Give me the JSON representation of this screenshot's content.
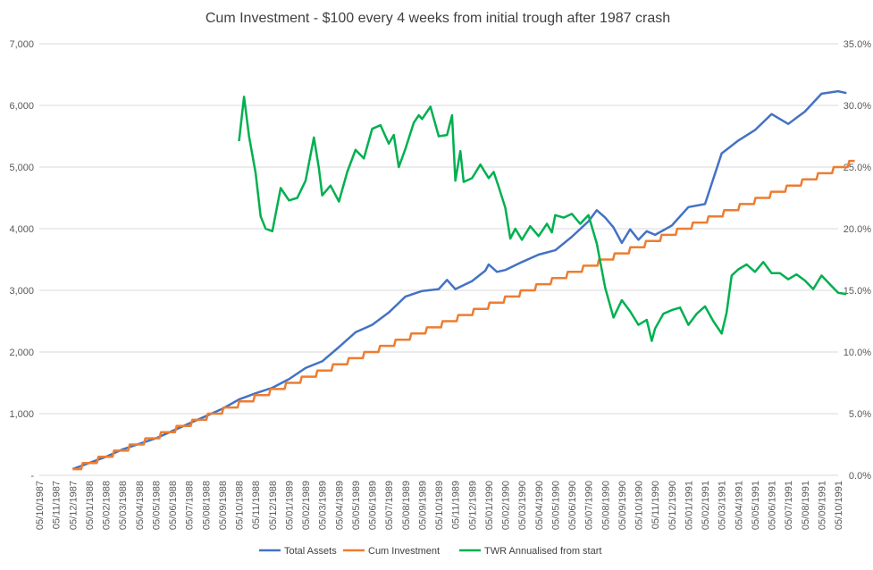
{
  "chart_data": {
    "type": "line",
    "title": "Cum Investment - $100 every 4 weeks from initial trough after 1987 crash",
    "x_tick_labels": [
      "05/10/1987",
      "05/11/1987",
      "05/12/1987",
      "05/01/1988",
      "05/02/1988",
      "05/03/1988",
      "05/04/1988",
      "05/05/1988",
      "05/06/1988",
      "05/07/1988",
      "05/08/1988",
      "05/09/1988",
      "05/10/1988",
      "05/11/1988",
      "05/12/1988",
      "05/01/1989",
      "05/02/1989",
      "05/03/1989",
      "05/04/1989",
      "05/05/1989",
      "05/06/1989",
      "05/07/1989",
      "05/08/1989",
      "05/09/1989",
      "05/10/1989",
      "05/11/1989",
      "05/12/1989",
      "05/01/1990",
      "05/02/1990",
      "05/03/1990",
      "05/04/1990",
      "05/05/1990",
      "05/06/1990",
      "05/07/1990",
      "05/08/1990",
      "05/09/1990",
      "05/10/1990",
      "05/11/1990",
      "05/12/1990",
      "05/01/1991",
      "05/02/1991",
      "05/03/1991",
      "05/04/1991",
      "05/05/1991",
      "05/06/1991",
      "05/07/1991",
      "05/08/1991",
      "05/09/1991",
      "05/10/1991"
    ],
    "y_left": {
      "ylim": [
        0,
        7000
      ],
      "tick_labels": [
        "-",
        "1,000",
        "2,000",
        "3,000",
        "4,000",
        "5,000",
        "6,000",
        "7,000"
      ]
    },
    "y_right": {
      "ylim": [
        0,
        35
      ],
      "tick_labels": [
        "0.0%",
        "5.0%",
        "10.0%",
        "15.0%",
        "20.0%",
        "25.0%",
        "30.0%",
        "35.0%"
      ]
    },
    "gridlines": true,
    "legend_position": "bottom",
    "series": [
      {
        "name": "Total Assets",
        "color": "#4472C4",
        "axis": "left",
        "points": [
          [
            2,
            100
          ],
          [
            3,
            200
          ],
          [
            4,
            300
          ],
          [
            5,
            420
          ],
          [
            6,
            510
          ],
          [
            7,
            600
          ],
          [
            8,
            720
          ],
          [
            9,
            840
          ],
          [
            10,
            960
          ],
          [
            11,
            1080
          ],
          [
            12,
            1230
          ],
          [
            13,
            1330
          ],
          [
            14,
            1420
          ],
          [
            15,
            1560
          ],
          [
            16,
            1740
          ],
          [
            17,
            1850
          ],
          [
            18,
            2080
          ],
          [
            19,
            2320
          ],
          [
            20,
            2440
          ],
          [
            21,
            2640
          ],
          [
            22,
            2900
          ],
          [
            23,
            2990
          ],
          [
            24,
            3020
          ],
          [
            24.5,
            3170
          ],
          [
            25,
            3020
          ],
          [
            26,
            3150
          ],
          [
            26.8,
            3320
          ],
          [
            27,
            3420
          ],
          [
            27.5,
            3300
          ],
          [
            28,
            3330
          ],
          [
            29,
            3460
          ],
          [
            30,
            3580
          ],
          [
            31,
            3650
          ],
          [
            32,
            3870
          ],
          [
            33,
            4120
          ],
          [
            33.5,
            4300
          ],
          [
            34,
            4180
          ],
          [
            34.5,
            4020
          ],
          [
            35,
            3770
          ],
          [
            35.5,
            3990
          ],
          [
            36,
            3820
          ],
          [
            36.5,
            3960
          ],
          [
            37,
            3900
          ],
          [
            38,
            4050
          ],
          [
            39,
            4350
          ],
          [
            40,
            4400
          ],
          [
            41,
            5220
          ],
          [
            42,
            5430
          ],
          [
            43,
            5600
          ],
          [
            44,
            5860
          ],
          [
            45,
            5700
          ],
          [
            46,
            5900
          ],
          [
            47,
            6190
          ],
          [
            48,
            6230
          ],
          [
            48.5,
            6200
          ]
        ]
      },
      {
        "name": "Cum Investment",
        "color": "#ED7D31",
        "axis": "left",
        "points": [
          [
            2,
            100
          ],
          [
            49,
            5100
          ]
        ]
      },
      {
        "name": "TWR Annualised from start",
        "color": "#00B050",
        "axis": "right",
        "points": [
          [
            12,
            27.1
          ],
          [
            12.3,
            30.7
          ],
          [
            12.6,
            27.5
          ],
          [
            13,
            24.5
          ],
          [
            13.3,
            21
          ],
          [
            13.6,
            20
          ],
          [
            14,
            19.8
          ],
          [
            14.5,
            23.3
          ],
          [
            15,
            22.3
          ],
          [
            15.5,
            22.5
          ],
          [
            16,
            23.9
          ],
          [
            16.5,
            27.4
          ],
          [
            16.8,
            24.9
          ],
          [
            17,
            22.7
          ],
          [
            17.5,
            23.5
          ],
          [
            18,
            22.2
          ],
          [
            18.5,
            24.6
          ],
          [
            19,
            26.4
          ],
          [
            19.5,
            25.7
          ],
          [
            20,
            28.1
          ],
          [
            20.5,
            28.4
          ],
          [
            21,
            26.9
          ],
          [
            21.3,
            27.6
          ],
          [
            21.6,
            25
          ],
          [
            22,
            26.5
          ],
          [
            22.5,
            28.6
          ],
          [
            22.8,
            29.2
          ],
          [
            23,
            28.9
          ],
          [
            23.5,
            29.9
          ],
          [
            24,
            27.5
          ],
          [
            24.5,
            27.6
          ],
          [
            24.8,
            29.2
          ],
          [
            25,
            23.9
          ],
          [
            25.3,
            26.3
          ],
          [
            25.5,
            23.8
          ],
          [
            26,
            24.1
          ],
          [
            26.5,
            25.2
          ],
          [
            27,
            24.1
          ],
          [
            27.3,
            24.6
          ],
          [
            27.6,
            23.4
          ],
          [
            28,
            21.7
          ],
          [
            28.3,
            19.2
          ],
          [
            28.6,
            20
          ],
          [
            29,
            19.1
          ],
          [
            29.5,
            20.2
          ],
          [
            30,
            19.4
          ],
          [
            30.5,
            20.4
          ],
          [
            30.8,
            19.7
          ],
          [
            31,
            21.1
          ],
          [
            31.5,
            20.9
          ],
          [
            32,
            21.2
          ],
          [
            32.5,
            20.4
          ],
          [
            33,
            21.1
          ],
          [
            33.5,
            18.8
          ],
          [
            34,
            15.2
          ],
          [
            34.5,
            12.8
          ],
          [
            35,
            14.2
          ],
          [
            35.5,
            13.3
          ],
          [
            36,
            12.2
          ],
          [
            36.5,
            12.6
          ],
          [
            36.8,
            10.9
          ],
          [
            37,
            11.9
          ],
          [
            37.5,
            13.1
          ],
          [
            38,
            13.4
          ],
          [
            38.5,
            13.6
          ],
          [
            39,
            12.2
          ],
          [
            39.5,
            13.1
          ],
          [
            40,
            13.7
          ],
          [
            40.5,
            12.5
          ],
          [
            41,
            11.5
          ],
          [
            41.3,
            13.2
          ],
          [
            41.6,
            16.2
          ],
          [
            42,
            16.7
          ],
          [
            42.5,
            17.1
          ],
          [
            43,
            16.5
          ],
          [
            43.5,
            17.3
          ],
          [
            44,
            16.4
          ],
          [
            44.5,
            16.4
          ],
          [
            45,
            15.9
          ],
          [
            45.5,
            16.3
          ],
          [
            46,
            15.8
          ],
          [
            46.5,
            15.1
          ],
          [
            47,
            16.2
          ],
          [
            47.5,
            15.5
          ],
          [
            48,
            14.8
          ],
          [
            48.5,
            14.7
          ]
        ]
      }
    ]
  }
}
